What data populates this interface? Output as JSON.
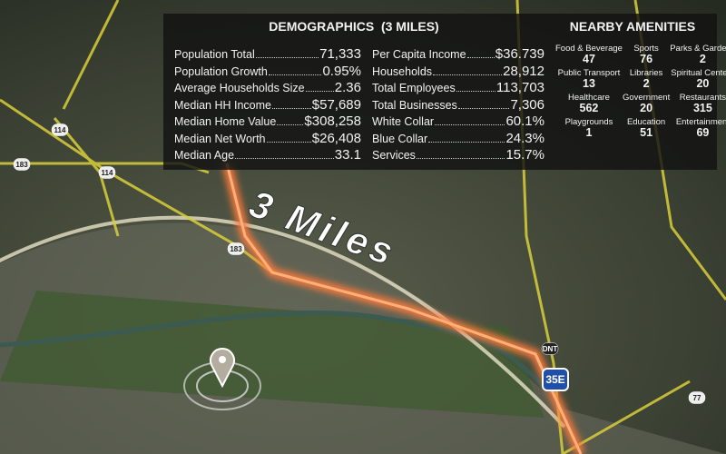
{
  "demographics": {
    "title": "DEMOGRAPHICS  (3 MILES)",
    "left": [
      {
        "label": "Population Total",
        "value": "71,333"
      },
      {
        "label": "Population Growth",
        "value": "0.95%"
      },
      {
        "label": "Average Households Size",
        "value": "2.36"
      },
      {
        "label": "Median HH Income",
        "value": "$57,689"
      },
      {
        "label": "Median Home Value",
        "value": "$308,258"
      },
      {
        "label": "Median Net Worth",
        "value": "$26,408"
      },
      {
        "label": "Median Age",
        "value": "33.1"
      }
    ],
    "right": [
      {
        "label": "Per Capita Income",
        "value": "$36.739"
      },
      {
        "label": "Households",
        "value": "28,912"
      },
      {
        "label": "Total Employees",
        "value": "113,703"
      },
      {
        "label": "Total Businesses",
        "value": "7,306"
      },
      {
        "label": "White Collar",
        "value": "60.1%"
      },
      {
        "label": "Blue Collar",
        "value": "24.3%"
      },
      {
        "label": "Services",
        "value": "15.7%"
      }
    ]
  },
  "amenities": {
    "title": "NEARBY AMENITIES",
    "items": [
      {
        "label": "Food & Beverage",
        "value": "47"
      },
      {
        "label": "Sports",
        "value": "76"
      },
      {
        "label": "Parks & Gardens",
        "value": "2"
      },
      {
        "label": "Public Transport",
        "value": "13"
      },
      {
        "label": "Libraries",
        "value": "2"
      },
      {
        "label": "Spiritual Centers",
        "value": "20"
      },
      {
        "label": "Healthcare",
        "value": "562"
      },
      {
        "label": "Government",
        "value": "20"
      },
      {
        "label": "Restaurants",
        "value": "315"
      },
      {
        "label": "Playgrounds",
        "value": "1"
      },
      {
        "label": "Education",
        "value": "51"
      },
      {
        "label": "Entertainment",
        "value": "69"
      }
    ]
  },
  "map": {
    "radius_label": "3 Miles",
    "road_signs": [
      "114",
      "183",
      "114",
      "183",
      "DNT",
      "35E",
      "77"
    ]
  }
}
